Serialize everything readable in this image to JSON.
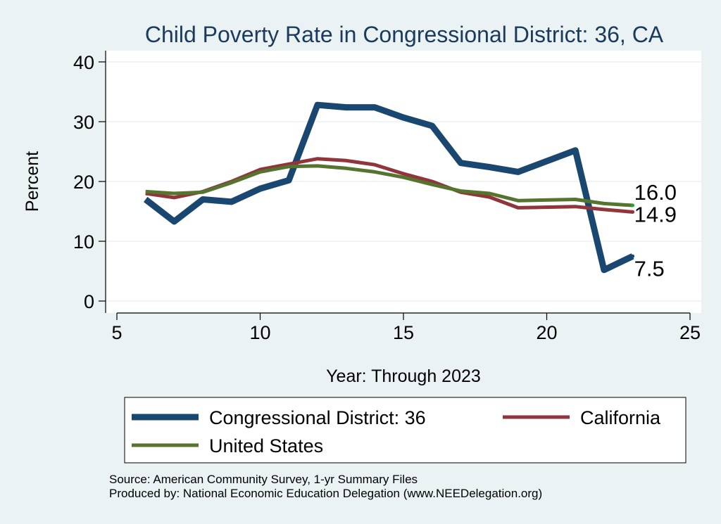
{
  "chart_data": {
    "type": "line",
    "title": "Child Poverty Rate in Congressional District:  36, CA",
    "xlabel": "Year: Through 2023",
    "ylabel": "Percent",
    "xlim": [
      5,
      25
    ],
    "ylim": [
      0,
      40
    ],
    "xticks": [
      5,
      10,
      15,
      20,
      25
    ],
    "yticks": [
      0,
      10,
      20,
      30,
      40
    ],
    "grid": true,
    "legend_position": "bottom",
    "series": [
      {
        "name": "Congressional District:  36",
        "color": "#1a476f",
        "x": [
          6,
          7,
          8,
          9,
          10,
          11,
          12,
          13,
          14,
          15,
          16,
          17,
          18,
          19,
          21,
          22,
          23
        ],
        "y": [
          17.0,
          13.3,
          17.0,
          16.6,
          18.8,
          20.2,
          32.8,
          32.4,
          32.4,
          30.7,
          29.3,
          23.1,
          22.4,
          21.6,
          25.2,
          5.2,
          7.5
        ],
        "end_label": "7.5"
      },
      {
        "name": "California",
        "color": "#90353b",
        "x": [
          6,
          7,
          8,
          9,
          10,
          11,
          12,
          13,
          14,
          15,
          16,
          17,
          18,
          19,
          21,
          22,
          23
        ],
        "y": [
          18.0,
          17.3,
          18.3,
          20.0,
          22.0,
          22.9,
          23.8,
          23.5,
          22.8,
          21.3,
          20.0,
          18.2,
          17.4,
          15.6,
          15.8,
          15.3,
          14.9
        ],
        "end_label": "14.9"
      },
      {
        "name": "United States",
        "color": "#55752f",
        "x": [
          6,
          7,
          8,
          9,
          10,
          11,
          12,
          13,
          14,
          15,
          16,
          17,
          18,
          19,
          21,
          22,
          23
        ],
        "y": [
          18.3,
          18.0,
          18.2,
          19.8,
          21.6,
          22.5,
          22.6,
          22.2,
          21.6,
          20.7,
          19.5,
          18.4,
          18.0,
          16.8,
          17.0,
          16.3,
          16.0
        ],
        "end_label": "16.0"
      }
    ]
  },
  "source_text": "Source: American Community Survey, 1-yr Summary Files",
  "produced_by_text": "Produced by: National Economic Education Delegation (www.NEEDelegation.org)"
}
